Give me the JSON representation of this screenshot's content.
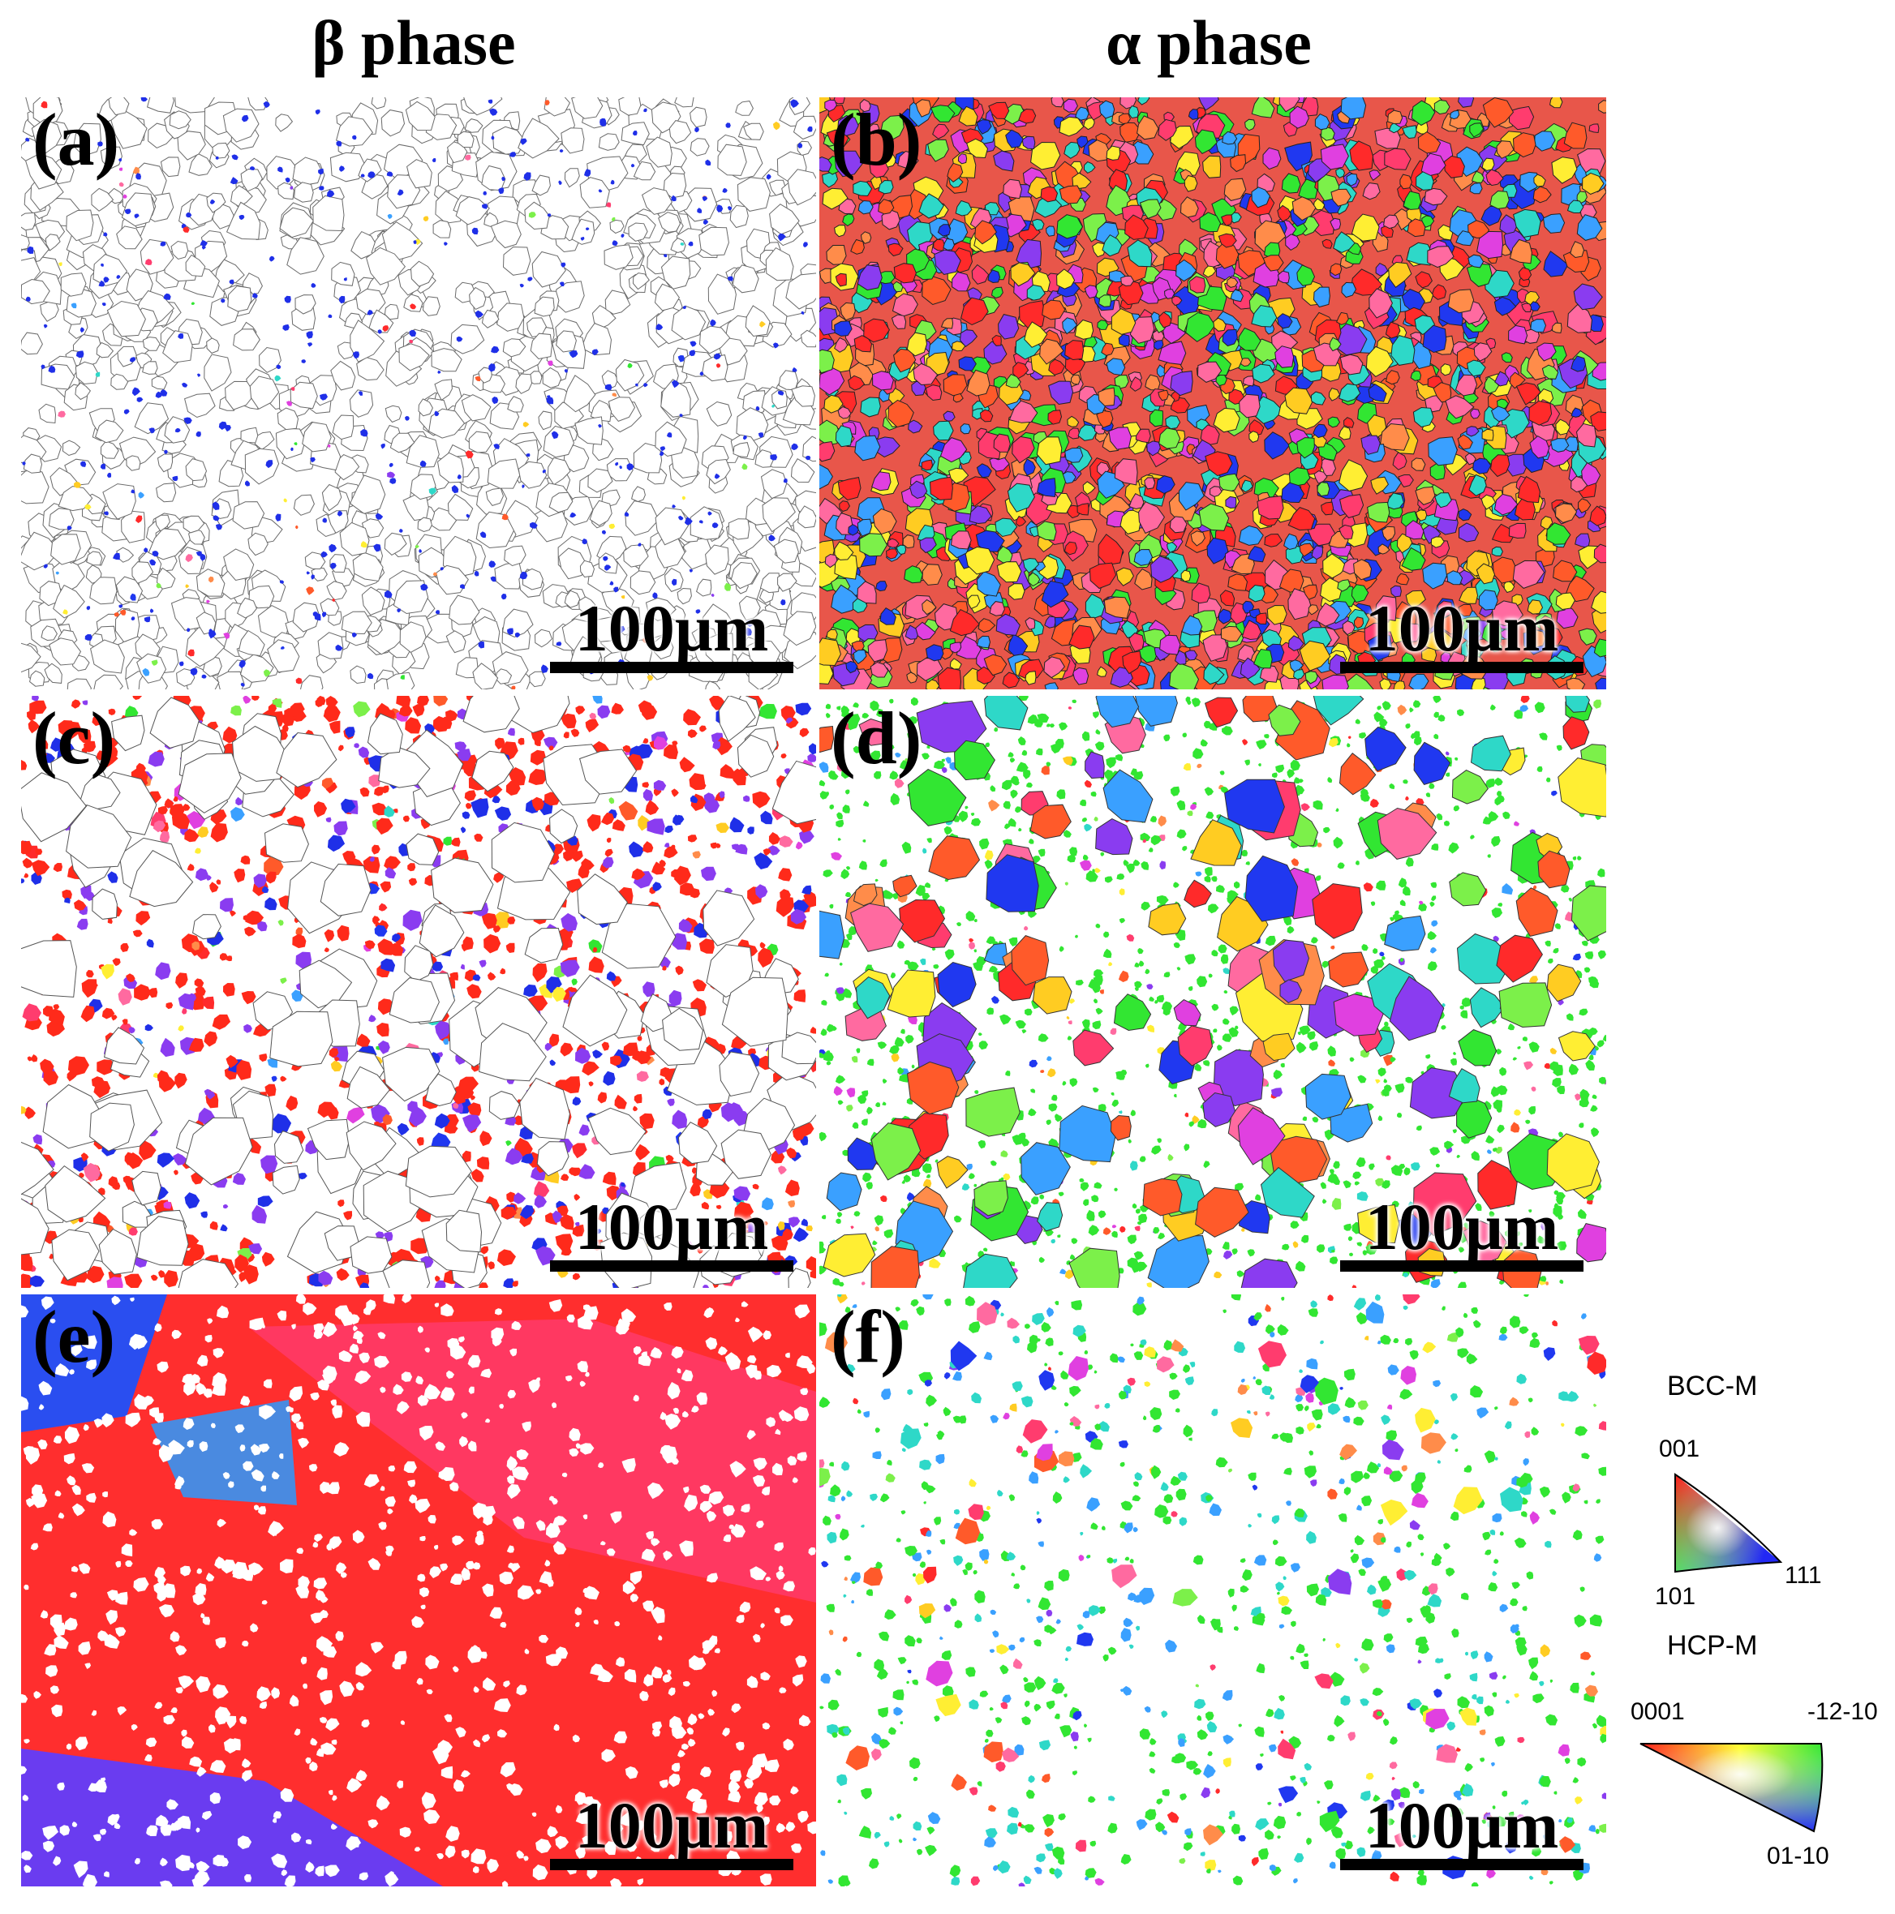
{
  "headers": {
    "beta": "β phase",
    "alpha": "α phase"
  },
  "panels": [
    {
      "label": "(a)",
      "scale": "100µm",
      "style": "beta-sparse",
      "bg": "#ffffff"
    },
    {
      "label": "(b)",
      "scale": "100µm",
      "style": "alpha-dense",
      "bg": "#e8564a"
    },
    {
      "label": "(c)",
      "scale": "100µm",
      "style": "beta-red-network",
      "bg": "#ffffff"
    },
    {
      "label": "(d)",
      "scale": "100µm",
      "style": "alpha-green-blobs",
      "bg": "#ffffff"
    },
    {
      "label": "(e)",
      "scale": "100µm",
      "style": "beta-large-red",
      "bg": "#ff2e2e"
    },
    {
      "label": "(f)",
      "scale": "100µm",
      "style": "alpha-sparse-green",
      "bg": "#ffffff"
    }
  ],
  "legend": {
    "bcc": {
      "title": "BCC-M",
      "top": "001",
      "left": "101",
      "right": "111"
    },
    "hcp": {
      "title": "HCP-M",
      "left": "0001",
      "right": "-12-10",
      "bottom": "01-10"
    }
  },
  "colors": {
    "red": "#ff2a2a",
    "green": "#32e632",
    "blue": "#1f2fe8",
    "boundary": "#555555"
  }
}
